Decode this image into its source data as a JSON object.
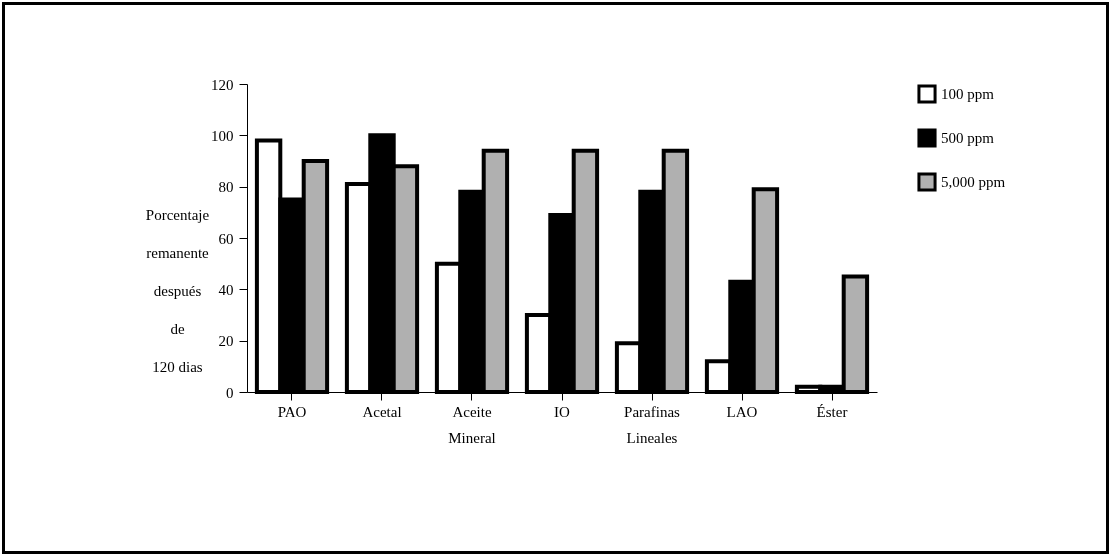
{
  "chart_data": {
    "type": "bar",
    "ylabel": "Porcentaje\nremanente\ndespués\nde\n120 dias",
    "categories": [
      "PAO",
      "Acetal",
      "Aceite Mineral",
      "IO",
      "Parafinas Lineales",
      "LAO",
      "Éster"
    ],
    "series": [
      {
        "name": "100 ppm",
        "color": "#ffffff",
        "values": [
          98,
          81,
          50,
          30,
          19,
          12,
          2
        ]
      },
      {
        "name": "500 ppm",
        "color": "#000000",
        "values": [
          75,
          100,
          78,
          69,
          78,
          43,
          2
        ]
      },
      {
        "name": "5,000 ppm",
        "color": "#b0b0b0",
        "values": [
          90,
          88,
          94,
          94,
          94,
          79,
          45
        ]
      }
    ],
    "ylim": [
      0,
      120
    ],
    "yticks": [
      0,
      20,
      40,
      60,
      80,
      100,
      120
    ],
    "grid": false,
    "legend": "right"
  }
}
